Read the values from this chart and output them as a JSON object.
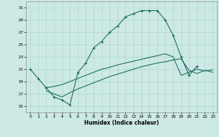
{
  "xlabel": "Humidex (Indice chaleur)",
  "background_color": "#cce9e5",
  "grid_color": "#aed4cf",
  "line_color": "#1a6b5a",
  "xlim": [
    -0.5,
    23.5
  ],
  "ylim": [
    14,
    32
  ],
  "xticks": [
    0,
    1,
    2,
    3,
    4,
    5,
    6,
    7,
    8,
    9,
    10,
    11,
    12,
    13,
    14,
    15,
    16,
    17,
    18,
    19,
    20,
    21,
    22,
    23
  ],
  "yticks": [
    15,
    17,
    19,
    21,
    23,
    25,
    27,
    29,
    31
  ],
  "line1_x": [
    0,
    1,
    2,
    3,
    4,
    5,
    6,
    7,
    8,
    9,
    10,
    11,
    12,
    13,
    14,
    15,
    16,
    17,
    18,
    19,
    20,
    21
  ],
  "line1_y": [
    21,
    19.5,
    18,
    16.5,
    16,
    15.2,
    20.5,
    22,
    24.5,
    25.5,
    27,
    28,
    29.5,
    30,
    30.5,
    30.5,
    30.5,
    29,
    26.5,
    23,
    20,
    21.5
  ],
  "line2_x": [
    2,
    3,
    4,
    5,
    6,
    7,
    8,
    9,
    10,
    11,
    12,
    13,
    14,
    15,
    16,
    17,
    18,
    19,
    20,
    21,
    22,
    23
  ],
  "line2_y": [
    18,
    18.2,
    18.5,
    19.0,
    19.5,
    20.0,
    20.5,
    21.0,
    21.3,
    21.7,
    22.0,
    22.3,
    22.6,
    22.9,
    23.2,
    23.5,
    23.0,
    20.0,
    20.5,
    21.0,
    20.7,
    20.9
  ],
  "line3_x": [
    2,
    3,
    4,
    5,
    6,
    7,
    8,
    9,
    10,
    11,
    12,
    13,
    14,
    15,
    16,
    17,
    18,
    19,
    20,
    21,
    22,
    23
  ],
  "line3_y": [
    17.5,
    17.0,
    16.5,
    17.2,
    17.8,
    18.3,
    18.8,
    19.3,
    19.8,
    20.2,
    20.6,
    21.0,
    21.4,
    21.7,
    22.0,
    22.2,
    22.5,
    22.7,
    20.8,
    20.3,
    20.8,
    20.5
  ]
}
